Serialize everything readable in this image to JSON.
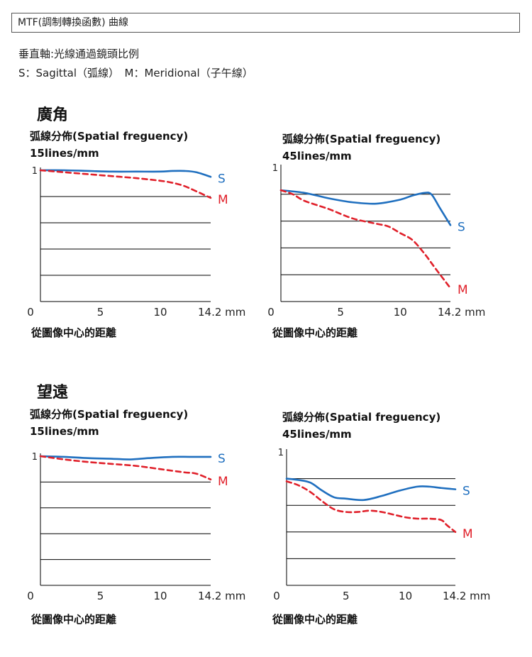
{
  "header": {
    "title": "MTF(調制轉換函數) 曲線"
  },
  "description": {
    "line1": "垂直軸:光線通過鏡頭比例",
    "line2": "S：Sagittal（弧線）　M：Meridional（子午線）"
  },
  "sections": [
    {
      "title": "廣角"
    },
    {
      "title": "望遠"
    }
  ],
  "colors": {
    "sagittal": "#1f6fbf",
    "meridional": "#e0202a",
    "grid": "#000000"
  },
  "chart_data": [
    {
      "type": "line",
      "section": "廣角",
      "title": "弧線分佈(Spatial freguency)",
      "subtitle": "15lines/mm",
      "xlabel": "從圖像中心的距離",
      "xunit": "mm",
      "xlim": [
        0,
        14.2
      ],
      "ylim": [
        0,
        1
      ],
      "xticks": [
        "0",
        "5",
        "10",
        "14.2 mm"
      ],
      "yticks": [
        "1"
      ],
      "series": [
        {
          "name": "S",
          "style": "solid",
          "x": [
            0,
            2,
            4,
            6,
            8,
            10,
            11,
            12,
            13,
            14.2
          ],
          "y": [
            1.0,
            1.0,
            0.995,
            0.99,
            0.99,
            0.99,
            0.995,
            0.995,
            0.985,
            0.95
          ]
        },
        {
          "name": "M",
          "style": "dashed",
          "x": [
            0,
            2,
            4,
            6,
            8,
            10,
            11,
            12,
            13,
            14.2
          ],
          "y": [
            1.0,
            0.985,
            0.97,
            0.955,
            0.94,
            0.92,
            0.905,
            0.88,
            0.84,
            0.79
          ]
        }
      ]
    },
    {
      "type": "line",
      "section": "廣角",
      "title": "弧線分佈(Spatial freguency)",
      "subtitle": "45lines/mm",
      "xlabel": "從圖像中心的距離",
      "xunit": "mm",
      "xlim": [
        0,
        14.2
      ],
      "ylim": [
        0,
        1
      ],
      "xticks": [
        "0",
        "5",
        "10",
        "14.2 mm"
      ],
      "yticks": [
        "1"
      ],
      "series": [
        {
          "name": "S",
          "style": "solid",
          "x": [
            0,
            2,
            4,
            6,
            8,
            10,
            11,
            12,
            12.6,
            13.3,
            14.2
          ],
          "y": [
            0.83,
            0.81,
            0.77,
            0.74,
            0.73,
            0.76,
            0.79,
            0.81,
            0.8,
            0.7,
            0.57
          ]
        },
        {
          "name": "M",
          "style": "dashed",
          "x": [
            0,
            1,
            2,
            4,
            6,
            8,
            9,
            10,
            11,
            12,
            13,
            14.2
          ],
          "y": [
            0.83,
            0.8,
            0.75,
            0.69,
            0.62,
            0.58,
            0.56,
            0.51,
            0.46,
            0.36,
            0.24,
            0.1
          ]
        }
      ]
    },
    {
      "type": "line",
      "section": "望遠",
      "title": "弧線分佈(Spatial freguency)",
      "subtitle": "15lines/mm",
      "xlabel": "從圖像中心的距離",
      "xunit": "mm",
      "xlim": [
        0,
        14.2
      ],
      "ylim": [
        0,
        1
      ],
      "xticks": [
        "0",
        "5",
        "10",
        "14.2 mm"
      ],
      "yticks": [
        "1"
      ],
      "series": [
        {
          "name": "S",
          "style": "solid",
          "x": [
            0,
            2,
            4,
            6,
            7.5,
            9,
            11,
            12.5,
            14.2
          ],
          "y": [
            1.0,
            0.995,
            0.985,
            0.98,
            0.975,
            0.985,
            0.995,
            0.995,
            0.995
          ]
        },
        {
          "name": "M",
          "style": "dashed",
          "x": [
            0,
            2,
            4,
            6,
            8,
            10,
            12,
            13,
            14.2
          ],
          "y": [
            1.0,
            0.975,
            0.955,
            0.94,
            0.925,
            0.9,
            0.875,
            0.865,
            0.82
          ]
        }
      ]
    },
    {
      "type": "line",
      "section": "望遠",
      "title": "弧線分佈(Spatial freguency)",
      "subtitle": "45lines/mm",
      "xlabel": "從圖像中心的距離",
      "xunit": "mm",
      "xlim": [
        0,
        14.2
      ],
      "ylim": [
        0,
        1
      ],
      "xticks": [
        "0",
        "5",
        "10",
        "14.2 mm"
      ],
      "yticks": [
        "1"
      ],
      "series": [
        {
          "name": "S",
          "style": "solid",
          "x": [
            0,
            1,
            2,
            3,
            4,
            5,
            6.5,
            8,
            9.5,
            11,
            12,
            13,
            14.2
          ],
          "y": [
            0.8,
            0.79,
            0.77,
            0.71,
            0.66,
            0.65,
            0.64,
            0.67,
            0.71,
            0.74,
            0.74,
            0.73,
            0.72
          ]
        },
        {
          "name": "M",
          "style": "dashed",
          "x": [
            0,
            1,
            2,
            3,
            4,
            5,
            6,
            7,
            8,
            9,
            10,
            11,
            12,
            13,
            13.5,
            14.2
          ],
          "y": [
            0.78,
            0.75,
            0.7,
            0.63,
            0.57,
            0.55,
            0.55,
            0.56,
            0.55,
            0.53,
            0.51,
            0.5,
            0.5,
            0.49,
            0.45,
            0.4
          ]
        }
      ]
    }
  ]
}
